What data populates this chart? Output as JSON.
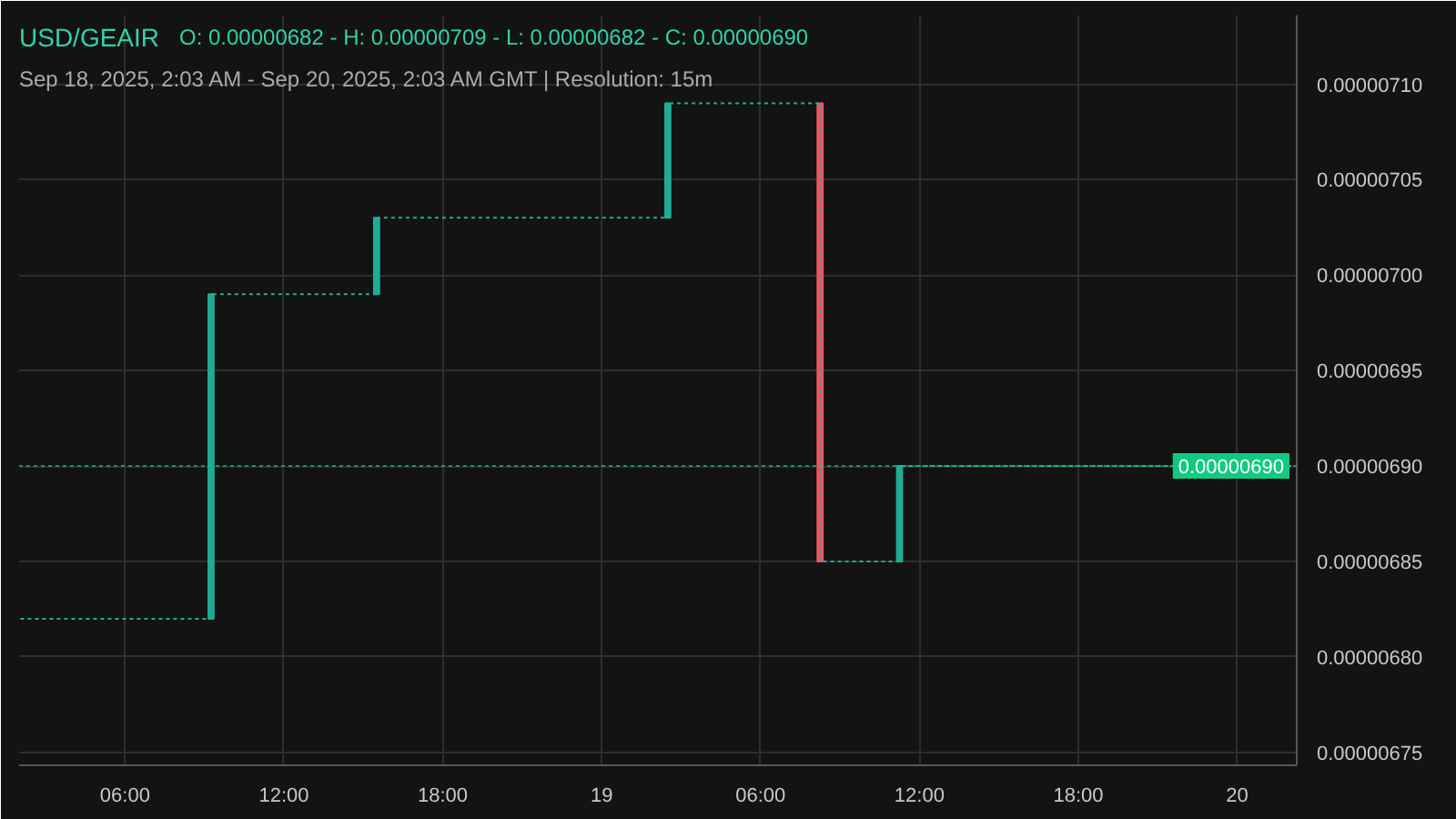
{
  "chart_data": {
    "type": "candlestick",
    "title": "USD/GEAIR",
    "subtitle": "Sep 18, 2025, 2:03 AM - Sep 20, 2025, 2:03 AM GMT   |   Resolution: 15m",
    "annotations": [
      "O: 0.00000682 - H: 0.00000709 - L: 0.00000682 - C: 0.00000690"
    ],
    "x": [
      "2025-09-18T09:15",
      "2025-09-18T15:30",
      "2025-09-19T02:30",
      "2025-09-19T08:15",
      "2025-09-19T11:15"
    ],
    "ohlc": [
      [
        6.82e-06,
        6.99e-06,
        6.82e-06,
        6.99e-06
      ],
      [
        6.99e-06,
        7.03e-06,
        6.99e-06,
        7.03e-06
      ],
      [
        7.03e-06,
        7.09e-06,
        7.03e-06,
        7.09e-06
      ],
      [
        7.09e-06,
        7.09e-06,
        6.85e-06,
        6.85e-06
      ],
      [
        6.85e-06,
        6.9e-06,
        6.85e-06,
        6.9e-06
      ]
    ],
    "colors": [
      "#22ab94",
      "#22ab94",
      "#22ab94",
      "#f7525f",
      "#22ab94"
    ],
    "series": [
      {
        "type": "step",
        "color": "#22ab94",
        "line_style": "dashed",
        "x": [
          "2025-09-18T02:03",
          "2025-09-18T09:15",
          "2025-09-18T15:30",
          "2025-09-19T02:30",
          "2025-09-19T08:15",
          "2025-09-19T11:15",
          "2025-09-20T02:03"
        ],
        "values": [
          6.82e-06,
          6.99e-06,
          7.03e-06,
          7.09e-06,
          6.85e-06,
          6.9e-06,
          6.9e-06
        ]
      }
    ],
    "xlim": [
      "2025-09-18T02:00",
      "2025-09-20T02:15"
    ],
    "xticks": [
      {
        "value": "2025-09-18T06:00",
        "label": "06:00"
      },
      {
        "value": "2025-09-18T12:00",
        "label": "12:00"
      },
      {
        "value": "2025-09-18T18:00",
        "label": "18:00"
      },
      {
        "value": "2025-09-19T00:00",
        "label": "19"
      },
      {
        "value": "2025-09-19T06:00",
        "label": "06:00"
      },
      {
        "value": "2025-09-19T12:00",
        "label": "12:00"
      },
      {
        "value": "2025-09-19T18:00",
        "label": "18:00"
      },
      {
        "value": "2025-09-20T00:00",
        "label": "20"
      }
    ],
    "ylim": [
      6.7432e-06,
      7.136e-06
    ],
    "yticks": [
      {
        "value": 6.75e-06,
        "label": "0.00000675"
      },
      {
        "value": 6.8e-06,
        "label": "0.00000680"
      },
      {
        "value": 6.85e-06,
        "label": "0.00000685"
      },
      {
        "value": 6.9e-06,
        "label": "0.00000690"
      },
      {
        "value": 6.95e-06,
        "label": "0.00000695"
      },
      {
        "value": 7e-06,
        "label": "0.00000700"
      },
      {
        "value": 7.05e-06,
        "label": "0.00000705"
      },
      {
        "value": 7.1e-06,
        "label": "0.00000710"
      }
    ],
    "ref_lines": [
      {
        "axis": "y",
        "value": 6.9e-06,
        "label": "0.00000690",
        "color": "#0ecb81",
        "line_style": "dashed"
      }
    ],
    "grid": true
  }
}
